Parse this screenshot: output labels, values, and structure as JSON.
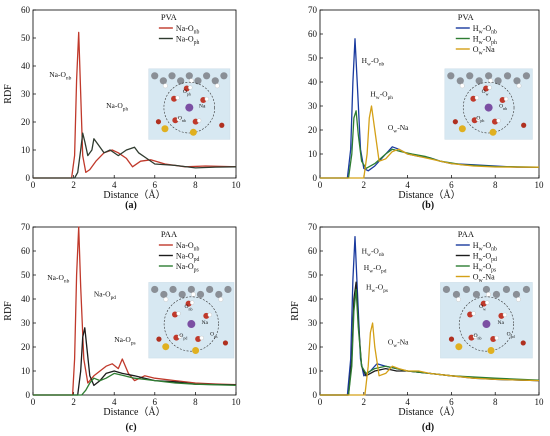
{
  "figure": {
    "panels": [
      {
        "id": "a",
        "caption": "(a)",
        "system": "PVA",
        "legend": [
          {
            "label": "Na-Onb",
            "base": "Na-O",
            "sub": "nb",
            "color": "#c0392b"
          },
          {
            "label": "Na-Oph",
            "base": "Na-O",
            "sub": "ph",
            "color": "#2f3b2f"
          }
        ],
        "annotations": [
          {
            "base": "Na-O",
            "sub": "nb",
            "at": [
              0.8,
              36
            ]
          },
          {
            "base": "Na-O",
            "sub": "ph",
            "at": [
              3.6,
              25
            ]
          }
        ],
        "inset_labels": [
          {
            "text": "O",
            "sub": "ph"
          },
          {
            "text": "Na",
            "sub": ""
          },
          {
            "text": "O",
            "sub": "nb"
          }
        ]
      },
      {
        "id": "b",
        "caption": "(b)",
        "system": "PVA",
        "legend": [
          {
            "label": "Hw-Onb",
            "base": "H",
            "sub": "w",
            "rest": "-O",
            "sub2": "nb",
            "color": "#1a3a9e"
          },
          {
            "label": "Hw-Oph",
            "base": "H",
            "sub": "w",
            "rest": "-O",
            "sub2": "ph",
            "color": "#2e7d32"
          },
          {
            "label": "Ow-Na",
            "base": "O",
            "sub": "w",
            "rest": "-Na",
            "sub2": "",
            "color": "#d4a017"
          }
        ],
        "annotations": [
          {
            "base": "H",
            "sub": "w",
            "rest": "-O",
            "sub2": "nb",
            "at": [
              1.9,
              48
            ]
          },
          {
            "base": "H",
            "sub": "w",
            "rest": "-O",
            "sub2": "ph",
            "at": [
              2.3,
              34
            ]
          },
          {
            "base": "O",
            "sub": "w",
            "rest": "-Na",
            "sub2": "",
            "at": [
              3.1,
              20
            ]
          }
        ],
        "inset_labels": [
          {
            "text": "O",
            "sub": "w"
          },
          {
            "text": "O",
            "sub": "nb"
          },
          {
            "text": "O",
            "sub": "ph"
          }
        ]
      },
      {
        "id": "c",
        "caption": "(c)",
        "system": "PAA",
        "legend": [
          {
            "label": "Na-Onb",
            "base": "Na-O",
            "sub": "nb",
            "color": "#c0392b"
          },
          {
            "label": "Na-Opd",
            "base": "Na-O",
            "sub": "pd",
            "color": "#1c1c1c"
          },
          {
            "label": "Na-Ops",
            "base": "Na-O",
            "sub": "ps",
            "color": "#2e7d32"
          }
        ],
        "annotations": [
          {
            "base": "Na-O",
            "sub": "nb",
            "at": [
              0.7,
              48
            ]
          },
          {
            "base": "Na-O",
            "sub": "pd",
            "at": [
              3.0,
              41
            ]
          },
          {
            "base": "Na-O",
            "sub": "ps",
            "at": [
              4.0,
              22
            ]
          }
        ],
        "inset_labels": [
          {
            "text": "O",
            "sub": "nb"
          },
          {
            "text": "Na",
            "sub": ""
          },
          {
            "text": "O",
            "sub": "pd"
          },
          {
            "text": "O",
            "sub": "ps"
          }
        ]
      },
      {
        "id": "d",
        "caption": "(d)",
        "system": "PAA",
        "legend": [
          {
            "label": "Hw-Onb",
            "base": "H",
            "sub": "w",
            "rest": "-O",
            "sub2": "nb",
            "color": "#1a3a9e"
          },
          {
            "label": "Hw-Opd",
            "base": "H",
            "sub": "w",
            "rest": "-O",
            "sub2": "pd",
            "color": "#1c1c1c"
          },
          {
            "label": "Hw-Ops",
            "base": "H",
            "sub": "w",
            "rest": "-O",
            "sub2": "ps",
            "color": "#2e7d32"
          },
          {
            "label": "Ow-Na",
            "base": "O",
            "sub": "w",
            "rest": "-Na",
            "sub2": "",
            "color": "#d4a017"
          }
        ],
        "annotations": [
          {
            "base": "H",
            "sub": "w",
            "rest": "-O",
            "sub2": "nb",
            "at": [
              1.9,
              59
            ]
          },
          {
            "base": "H",
            "sub": "w",
            "rest": "-O",
            "sub2": "pd",
            "at": [
              2.0,
              52
            ]
          },
          {
            "base": "H",
            "sub": "w",
            "rest": "-O",
            "sub2": "ps",
            "at": [
              2.1,
              44
            ]
          },
          {
            "base": "O",
            "sub": "w",
            "rest": "-Na",
            "sub2": "",
            "at": [
              3.1,
              21
            ]
          }
        ],
        "inset_labels": [
          {
            "text": "O",
            "sub": "w"
          },
          {
            "text": "Na",
            "sub": ""
          },
          {
            "text": "O",
            "sub": "nb"
          },
          {
            "text": "O",
            "sub": "pd"
          }
        ]
      }
    ]
  },
  "chart_data": [
    {
      "type": "line",
      "panel": "a",
      "title": "PVA",
      "xlabel": "Distance（Å）",
      "ylabel": "RDF",
      "xlim": [
        0,
        10
      ],
      "ylim": [
        0,
        60
      ],
      "xticks": [
        0,
        2,
        4,
        6,
        8,
        10
      ],
      "yticks": [
        0,
        10,
        20,
        30,
        40,
        50,
        60
      ],
      "series": [
        {
          "name": "Na-Onb",
          "color": "#c0392b",
          "x": [
            0,
            1.9,
            2.05,
            2.15,
            2.25,
            2.35,
            2.45,
            2.6,
            2.8,
            3.1,
            3.5,
            3.9,
            4.2,
            4.6,
            4.9,
            5.3,
            5.8,
            6.5,
            7.5,
            8.5,
            10
          ],
          "y": [
            0,
            0,
            8,
            35,
            52,
            30,
            8,
            2,
            3,
            6,
            9,
            10,
            9,
            7,
            4,
            6,
            6.5,
            5,
            4,
            4.3,
            4
          ]
        },
        {
          "name": "Na-Oph",
          "color": "#2f3b2f",
          "x": [
            0,
            2.05,
            2.2,
            2.35,
            2.45,
            2.55,
            2.7,
            2.9,
            3.0,
            3.2,
            3.5,
            3.8,
            4.2,
            4.6,
            5.0,
            5.2,
            5.6,
            6.0,
            7.0,
            8.0,
            9.0,
            10
          ],
          "y": [
            0,
            0,
            2,
            10,
            16,
            13,
            8,
            10,
            14,
            12,
            9,
            10,
            8,
            10,
            11,
            9,
            7,
            5,
            4.5,
            3.6,
            3.9,
            4
          ]
        }
      ]
    },
    {
      "type": "line",
      "panel": "b",
      "title": "PVA",
      "xlabel": "Distance（Å）",
      "ylabel": "",
      "xlim": [
        0,
        10
      ],
      "ylim": [
        0,
        70
      ],
      "xticks": [
        0,
        2,
        4,
        6,
        8,
        10
      ],
      "yticks": [
        0,
        10,
        20,
        30,
        40,
        50,
        60,
        70
      ],
      "series": [
        {
          "name": "Hw-Onb",
          "color": "#1a3a9e",
          "x": [
            0,
            1.25,
            1.4,
            1.5,
            1.6,
            1.7,
            1.85,
            2.0,
            2.2,
            2.5,
            3.0,
            3.3,
            3.6,
            4.0,
            4.5,
            5.0,
            5.5,
            6.0,
            7.0,
            8.0,
            9.0,
            10
          ],
          "y": [
            0,
            0,
            12,
            40,
            58,
            40,
            12,
            4,
            3,
            5,
            10,
            13,
            12,
            10,
            9,
            8.5,
            7,
            6,
            5.5,
            5,
            4.5,
            4.4
          ]
        },
        {
          "name": "Hw-Oph",
          "color": "#2e7d32",
          "x": [
            0,
            1.3,
            1.45,
            1.55,
            1.65,
            1.75,
            1.9,
            2.1,
            2.5,
            3.0,
            3.3,
            3.7,
            4.2,
            4.8,
            5.5,
            6.5,
            8.0,
            10
          ],
          "y": [
            0,
            0,
            10,
            25,
            28,
            18,
            7,
            4,
            6,
            10,
            12,
            11,
            10,
            9,
            7,
            5.5,
            4.8,
            4.5
          ]
        },
        {
          "name": "Ow-Na",
          "color": "#d4a017",
          "x": [
            0,
            2.0,
            2.15,
            2.25,
            2.35,
            2.5,
            2.7,
            3.0,
            3.3,
            3.6,
            4.0,
            4.5,
            5.0,
            6.0,
            7.0,
            8.0,
            10
          ],
          "y": [
            0,
            0,
            10,
            25,
            30,
            20,
            7,
            8,
            11,
            12,
            10,
            9,
            8,
            6,
            5,
            4.6,
            4.5
          ]
        }
      ]
    },
    {
      "type": "line",
      "panel": "c",
      "title": "PAA",
      "xlabel": "Distance（Å）",
      "ylabel": "RDF",
      "xlim": [
        0,
        10
      ],
      "ylim": [
        0,
        70
      ],
      "xticks": [
        0,
        2,
        4,
        6,
        8,
        10
      ],
      "yticks": [
        0,
        10,
        20,
        30,
        40,
        50,
        60,
        70
      ],
      "series": [
        {
          "name": "Na-Onb",
          "color": "#c0392b",
          "x": [
            0,
            1.95,
            2.05,
            2.15,
            2.25,
            2.35,
            2.5,
            2.7,
            3.0,
            3.3,
            3.6,
            3.9,
            4.2,
            4.4,
            4.7,
            5.0,
            5.5,
            6.0,
            7.0,
            8.0,
            9.0,
            10
          ],
          "y": [
            0,
            0,
            15,
            50,
            70,
            45,
            15,
            5,
            8,
            10,
            12,
            13,
            11,
            15,
            9,
            6,
            8,
            7,
            6,
            5,
            4.6,
            4.3
          ]
        },
        {
          "name": "Na-Opd",
          "color": "#1c1c1c",
          "x": [
            0,
            2.2,
            2.35,
            2.45,
            2.55,
            2.65,
            2.8,
            3.0,
            3.3,
            3.6,
            4.0,
            4.4,
            5.0,
            5.5,
            6.0,
            7.0,
            8.0,
            10
          ],
          "y": [
            0,
            0,
            10,
            24,
            28,
            20,
            8,
            4,
            6,
            9,
            10,
            9,
            8,
            7,
            6,
            5.5,
            4.5,
            4.2
          ]
        },
        {
          "name": "Na-Ops",
          "color": "#2e7d32",
          "x": [
            0,
            2.4,
            2.6,
            2.8,
            3.0,
            3.3,
            3.6,
            4.0,
            4.5,
            5.0,
            5.5,
            6.0,
            7.0,
            8.0,
            10
          ],
          "y": [
            0,
            0,
            2,
            5,
            7,
            6,
            7,
            9,
            8,
            7,
            6.5,
            6,
            5,
            4.5,
            4
          ]
        }
      ]
    },
    {
      "type": "line",
      "panel": "d",
      "title": "PAA",
      "xlabel": "Distance（Å）",
      "ylabel": "RDF",
      "xlim": [
        0,
        10
      ],
      "ylim": [
        0,
        70
      ],
      "xticks": [
        0,
        2,
        4,
        6,
        8,
        10
      ],
      "yticks": [
        0,
        10,
        20,
        30,
        40,
        50,
        60,
        70
      ],
      "series": [
        {
          "name": "Hw-Onb",
          "color": "#1a3a9e",
          "x": [
            0,
            1.25,
            1.4,
            1.5,
            1.6,
            1.7,
            1.85,
            2.0,
            2.3,
            2.6,
            3.0,
            3.5,
            4.0,
            5.0,
            6.0,
            7.0,
            8.0,
            10
          ],
          "y": [
            0,
            0,
            15,
            48,
            66,
            45,
            15,
            8,
            10,
            13,
            12,
            11,
            10,
            9,
            8,
            7,
            6.5,
            6
          ]
        },
        {
          "name": "Hw-Opd",
          "color": "#1c1c1c",
          "x": [
            0,
            1.3,
            1.45,
            1.55,
            1.65,
            1.75,
            1.9,
            2.1,
            2.5,
            3.0,
            3.5,
            4.0,
            5.0,
            6.0,
            8.0,
            10
          ],
          "y": [
            0,
            0,
            15,
            40,
            47,
            30,
            12,
            8,
            10,
            11,
            10,
            10,
            9,
            8,
            6.5,
            6
          ]
        },
        {
          "name": "Hw-Ops",
          "color": "#2e7d32",
          "x": [
            0,
            1.3,
            1.45,
            1.55,
            1.65,
            1.75,
            1.9,
            2.1,
            2.5,
            3.0,
            3.5,
            4.0,
            5.0,
            6.0,
            8.0,
            10
          ],
          "y": [
            0,
            0,
            12,
            35,
            44,
            28,
            12,
            9,
            11,
            12,
            11,
            10,
            9,
            8,
            7,
            6.2
          ]
        },
        {
          "name": "Ow-Na",
          "color": "#d4a017",
          "x": [
            0,
            2.05,
            2.2,
            2.3,
            2.4,
            2.5,
            2.7,
            3.0,
            3.3,
            3.6,
            4.0,
            4.5,
            5.0,
            6.0,
            7.0,
            8.0,
            10
          ],
          "y": [
            0,
            0,
            12,
            26,
            30,
            20,
            8,
            9,
            12,
            11,
            10,
            10,
            9,
            8,
            7,
            6.5,
            6
          ]
        }
      ]
    }
  ]
}
